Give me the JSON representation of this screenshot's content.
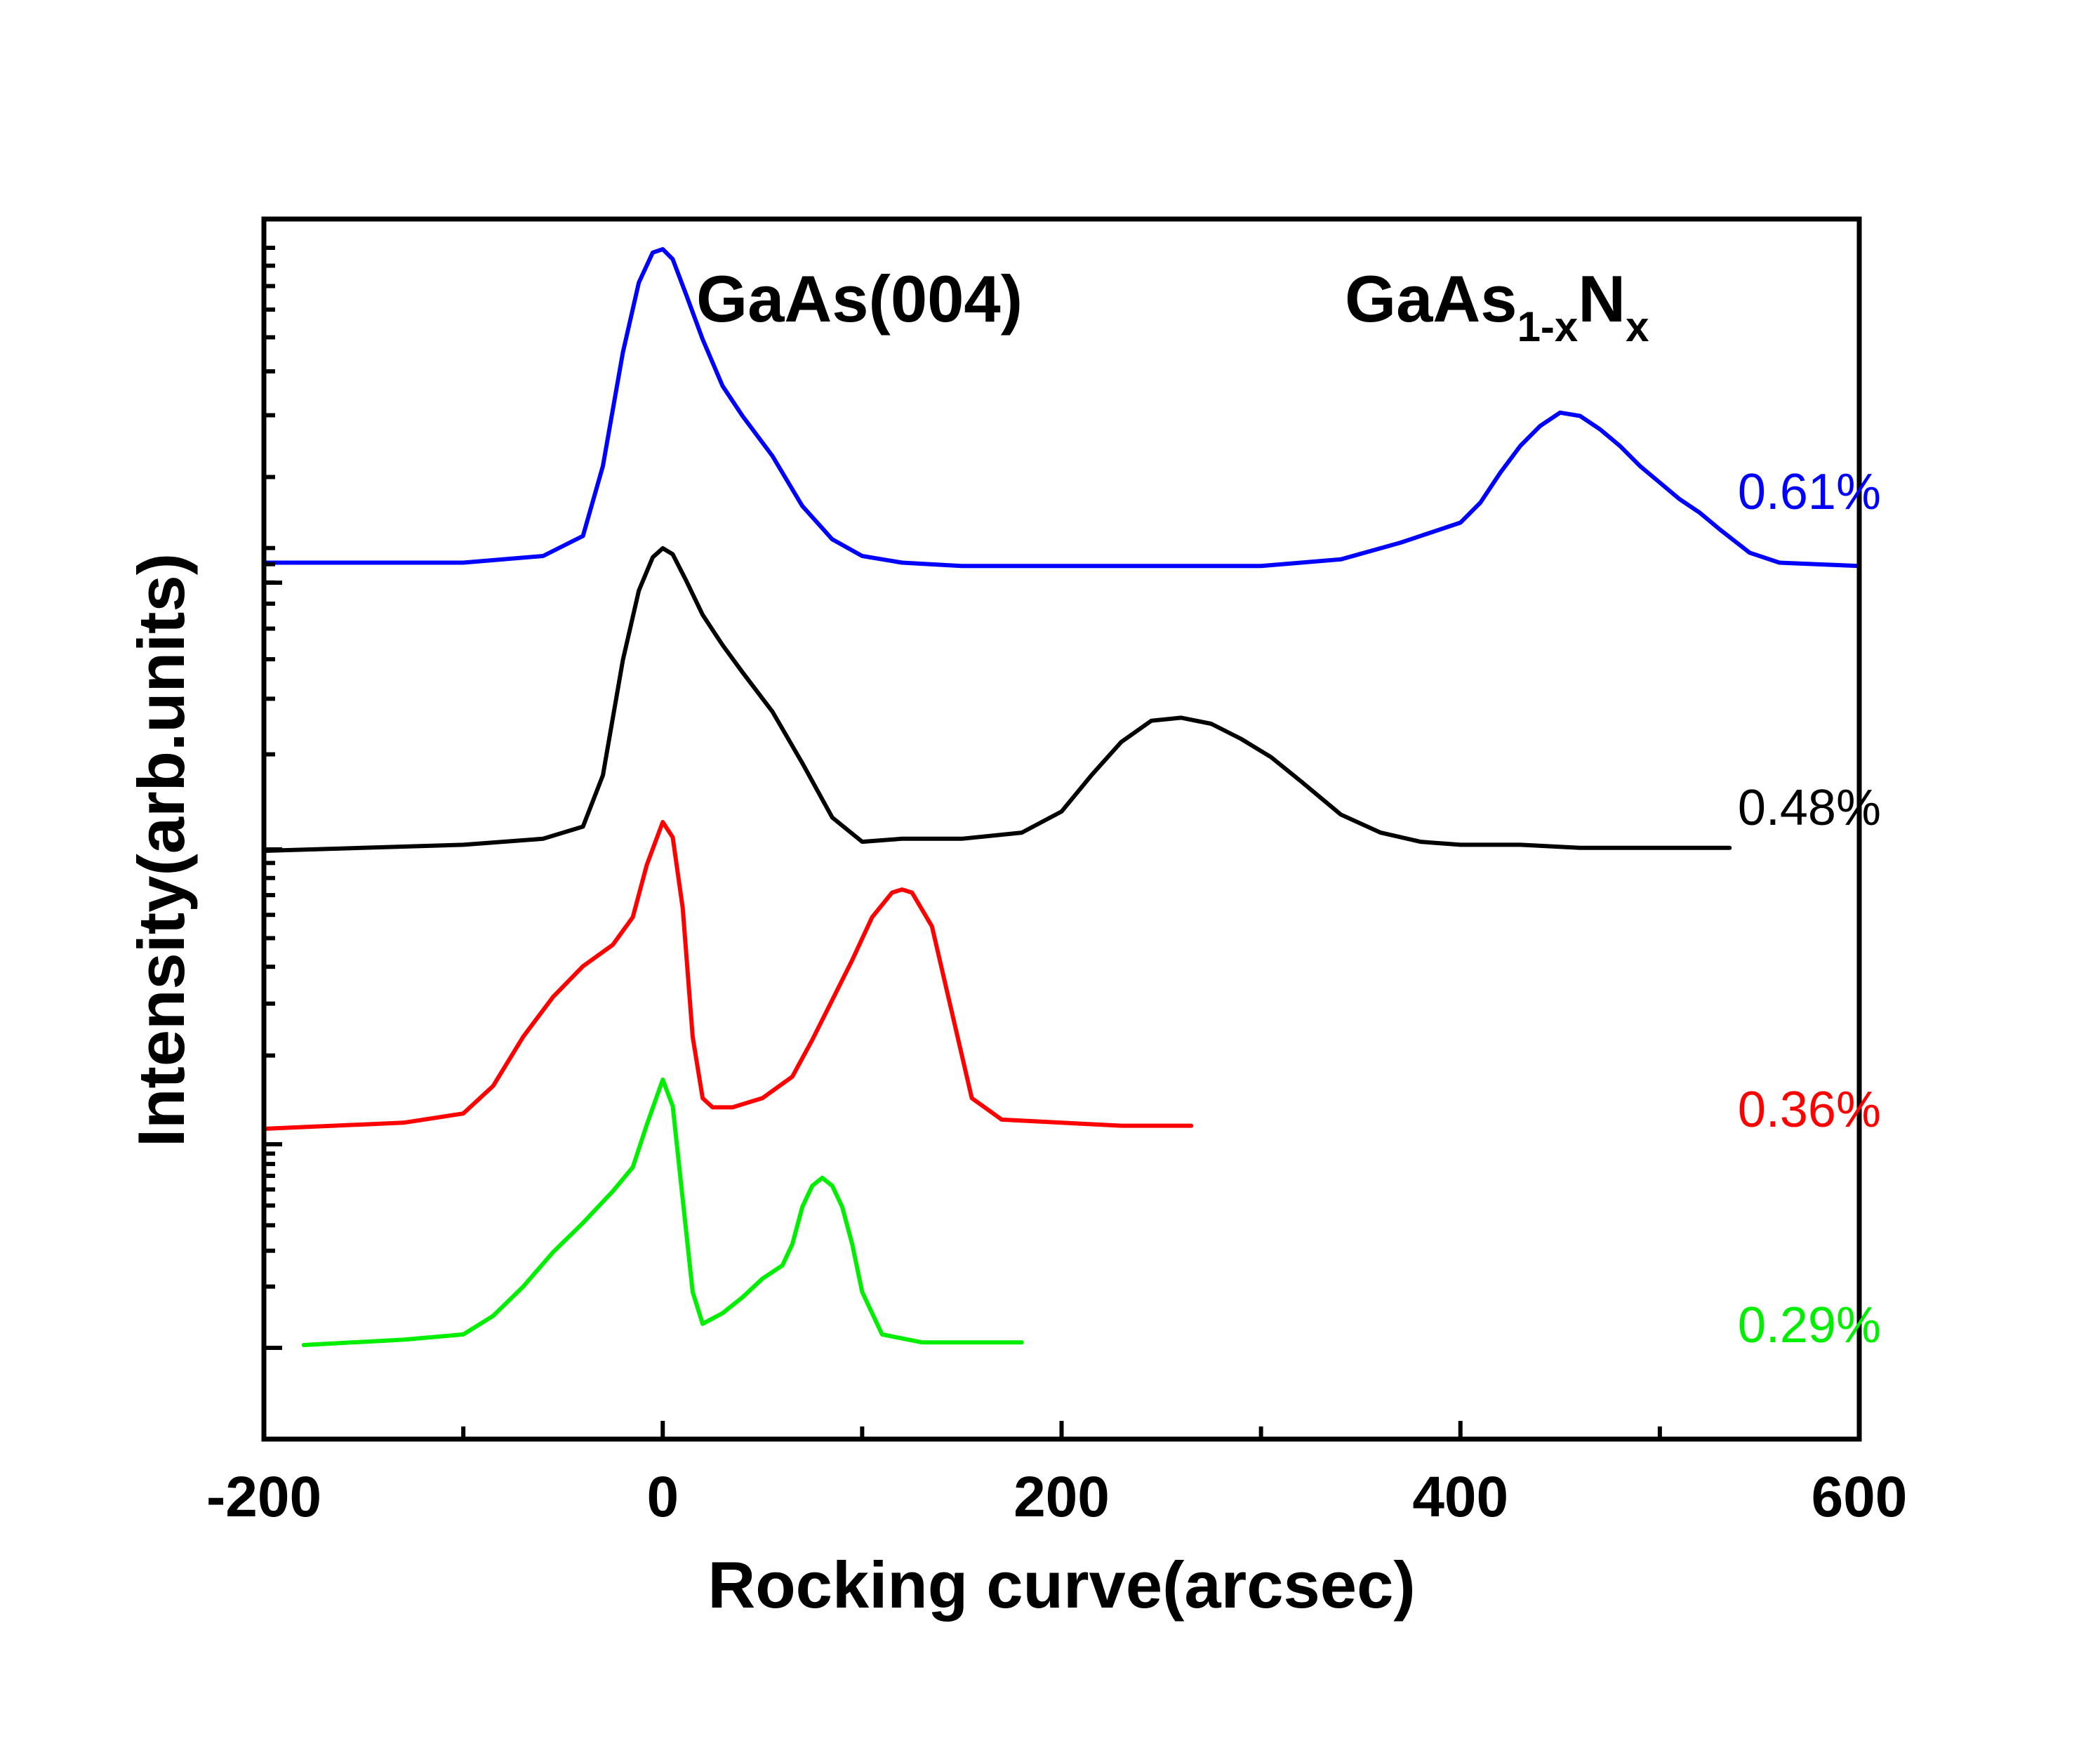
{
  "chart_data": {
    "type": "line",
    "title": "",
    "xlabel": "Rocking curve(arcsec)",
    "ylabel": "Intensity(arb.units)",
    "xlim": [
      -200,
      600
    ],
    "xticks": [
      -200,
      0,
      200,
      400,
      600
    ],
    "x_tick_labels": [
      "-200",
      "0",
      "200",
      "400",
      "600"
    ],
    "grid": false,
    "legend": "none",
    "annotations": {
      "substrate_peak": "GaAs(004)",
      "alloy_peak": {
        "base": "GaAs",
        "sub1": "1-x",
        "mid": "N",
        "sub2": "x"
      }
    },
    "series": [
      {
        "name": "0.61%",
        "color": "#0000ff",
        "x": [
          -200,
          -100,
          -60,
          -40,
          -30,
          -20,
          -12,
          -5,
          0,
          5,
          12,
          20,
          30,
          40,
          55,
          70,
          85,
          100,
          120,
          150,
          200,
          250,
          300,
          340,
          370,
          400,
          410,
          420,
          430,
          440,
          450,
          460,
          470,
          480,
          490,
          500,
          510,
          520,
          530,
          545,
          560,
          600
        ],
        "y": [
          0.06,
          0.06,
          0.08,
          0.14,
          0.35,
          0.69,
          0.9,
          0.99,
          1.0,
          0.97,
          0.86,
          0.73,
          0.59,
          0.5,
          0.38,
          0.23,
          0.13,
          0.08,
          0.06,
          0.05,
          0.05,
          0.05,
          0.05,
          0.07,
          0.12,
          0.18,
          0.24,
          0.33,
          0.41,
          0.47,
          0.51,
          0.5,
          0.46,
          0.41,
          0.35,
          0.3,
          0.25,
          0.21,
          0.16,
          0.09,
          0.06,
          0.05
        ]
      },
      {
        "name": "0.48%",
        "color": "#000000",
        "x": [
          -200,
          -100,
          -60,
          -40,
          -30,
          -20,
          -12,
          -5,
          0,
          5,
          12,
          20,
          30,
          40,
          55,
          70,
          85,
          100,
          120,
          150,
          180,
          200,
          215,
          230,
          245,
          260,
          275,
          290,
          305,
          320,
          340,
          360,
          380,
          400,
          430,
          460,
          500,
          535
        ],
        "y": [
          0.0,
          0.02,
          0.04,
          0.08,
          0.25,
          0.63,
          0.86,
          0.97,
          1.0,
          0.98,
          0.89,
          0.78,
          0.68,
          0.59,
          0.46,
          0.29,
          0.11,
          0.03,
          0.04,
          0.04,
          0.06,
          0.13,
          0.25,
          0.36,
          0.43,
          0.44,
          0.42,
          0.37,
          0.31,
          0.23,
          0.12,
          0.06,
          0.03,
          0.02,
          0.02,
          0.01,
          0.01,
          0.01
        ]
      },
      {
        "name": "0.36%",
        "color": "#ff0000",
        "x": [
          -200,
          -130,
          -100,
          -85,
          -70,
          -55,
          -40,
          -25,
          -15,
          -8,
          0,
          5,
          10,
          15,
          20,
          25,
          35,
          50,
          65,
          75,
          85,
          95,
          105,
          115,
          120,
          125,
          135,
          145,
          155,
          170,
          200,
          230,
          265
        ],
        "y": [
          0.0,
          0.02,
          0.05,
          0.14,
          0.3,
          0.43,
          0.53,
          0.6,
          0.69,
          0.86,
          1.0,
          0.95,
          0.72,
          0.3,
          0.1,
          0.07,
          0.07,
          0.1,
          0.17,
          0.29,
          0.42,
          0.55,
          0.69,
          0.77,
          0.78,
          0.77,
          0.66,
          0.38,
          0.1,
          0.03,
          0.02,
          0.01,
          0.01
        ]
      },
      {
        "name": "0.29%",
        "color": "#00ee00",
        "x": [
          -180,
          -130,
          -100,
          -85,
          -70,
          -55,
          -40,
          -25,
          -15,
          -8,
          0,
          5,
          10,
          15,
          20,
          30,
          40,
          50,
          60,
          65,
          70,
          75,
          80,
          85,
          90,
          95,
          100,
          110,
          130,
          180
        ],
        "y": [
          0.0,
          0.02,
          0.04,
          0.11,
          0.22,
          0.35,
          0.46,
          0.58,
          0.67,
          0.83,
          1.0,
          0.9,
          0.55,
          0.2,
          0.08,
          0.12,
          0.18,
          0.25,
          0.3,
          0.38,
          0.52,
          0.6,
          0.63,
          0.6,
          0.52,
          0.38,
          0.2,
          0.04,
          0.01,
          0.01
        ]
      }
    ]
  }
}
